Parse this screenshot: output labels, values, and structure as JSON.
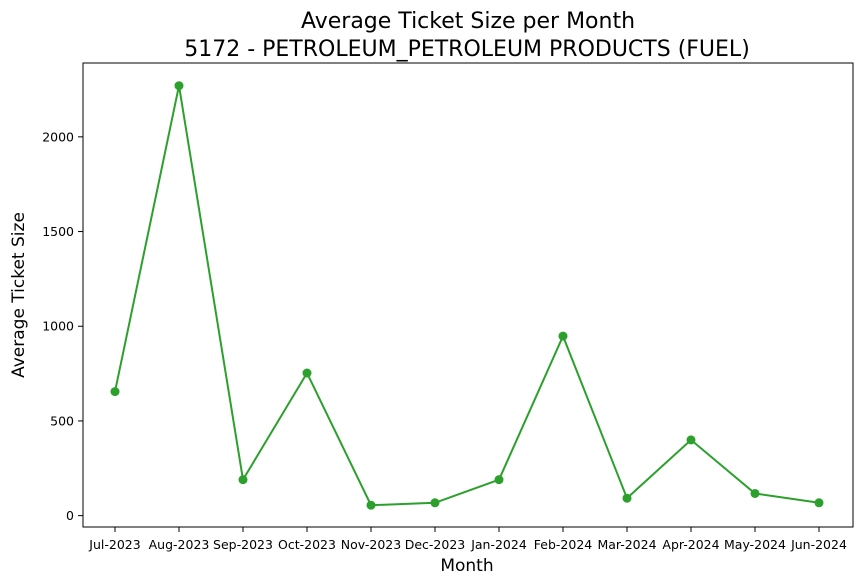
{
  "chart_data": {
    "type": "line",
    "title": "Average Ticket Size per Month",
    "subtitle": "5172 - PETROLEUM_PETROLEUM PRODUCTS (FUEL)",
    "xlabel": "Month",
    "ylabel": "Average Ticket Size",
    "categories": [
      "Jul-2023",
      "Aug-2023",
      "Sep-2023",
      "Oct-2023",
      "Nov-2023",
      "Dec-2023",
      "Jan-2024",
      "Feb-2024",
      "Mar-2024",
      "Apr-2024",
      "May-2024",
      "Jun-2024"
    ],
    "series": [
      {
        "values": [
          655,
          2270,
          190,
          753,
          55,
          68,
          190,
          948,
          92,
          400,
          117,
          68
        ],
        "color": "#2ca02c"
      }
    ],
    "ylim": [
      -60,
      2390
    ],
    "yticks": [
      0,
      500,
      1000,
      1500,
      2000
    ],
    "grid": false,
    "legend": "none"
  }
}
